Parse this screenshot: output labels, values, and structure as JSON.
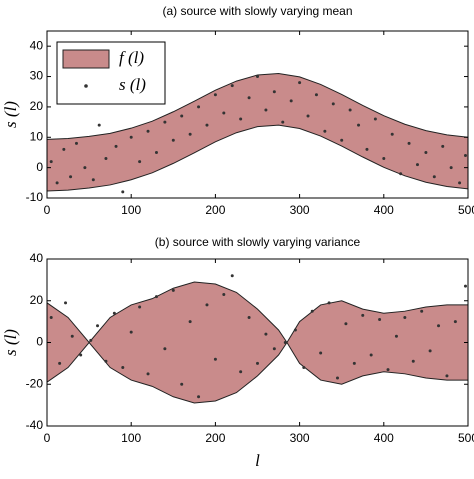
{
  "chart_data": [
    {
      "type": "band-scatter",
      "title": "(a) source with slowly varying mean",
      "ylabel": "s (l)",
      "xlim": [
        0,
        500
      ],
      "ylim": [
        -10,
        45
      ],
      "xticks": [
        0,
        100,
        200,
        300,
        400,
        500
      ],
      "yticks": [
        -10,
        0,
        10,
        20,
        30,
        40
      ],
      "legend": "upper left",
      "band": {
        "name": "f (l)",
        "color": "#c98b8b",
        "x": [
          0,
          25,
          50,
          75,
          100,
          125,
          150,
          175,
          200,
          225,
          250,
          275,
          300,
          325,
          350,
          375,
          400,
          425,
          450,
          475,
          500
        ],
        "lower": [
          -7.7,
          -7.4,
          -6.7,
          -5.7,
          -4,
          -1.7,
          1.4,
          4.9,
          8.5,
          11.5,
          13.5,
          14,
          12.9,
          10.4,
          7.1,
          3.5,
          0.1,
          -2.7,
          -4.8,
          -6.2,
          -7
        ],
        "upper": [
          9.3,
          9.6,
          10.3,
          11.3,
          13,
          15.3,
          18.4,
          21.9,
          25.5,
          28.5,
          30.5,
          31,
          29.9,
          27.4,
          24.1,
          20.5,
          17.1,
          14.3,
          12.2,
          10.8,
          10
        ]
      },
      "points": {
        "name": "s (l)",
        "color": "#333333",
        "x": [
          5,
          12,
          20,
          28,
          35,
          45,
          55,
          62,
          70,
          82,
          90,
          100,
          110,
          120,
          130,
          140,
          150,
          160,
          170,
          180,
          190,
          200,
          210,
          220,
          230,
          240,
          250,
          260,
          270,
          280,
          290,
          300,
          310,
          320,
          330,
          340,
          350,
          360,
          370,
          380,
          390,
          400,
          410,
          420,
          430,
          440,
          450,
          460,
          470,
          480,
          490,
          497
        ],
        "y": [
          2,
          -5,
          6,
          -3,
          8,
          0,
          -4,
          14,
          3,
          7,
          -8,
          10,
          2,
          12,
          5,
          15,
          9,
          17,
          11,
          20,
          14,
          24,
          18,
          27,
          16,
          23,
          30,
          19,
          25,
          15,
          22,
          28,
          17,
          24,
          12,
          21,
          9,
          19,
          14,
          6,
          16,
          3,
          11,
          -2,
          8,
          1,
          5,
          -3,
          7,
          0,
          -5,
          4
        ]
      }
    },
    {
      "type": "band-scatter",
      "title": "(b) source with slowly varying variance",
      "ylabel": "s (l)",
      "xlabel": "l",
      "xlim": [
        0,
        500
      ],
      "ylim": [
        -40,
        40
      ],
      "xticks": [
        0,
        100,
        200,
        300,
        400,
        500
      ],
      "yticks": [
        -40,
        -20,
        0,
        20,
        40
      ],
      "band": {
        "color": "#c98b8b",
        "x": [
          0,
          25,
          50,
          75,
          100,
          125,
          150,
          175,
          200,
          225,
          250,
          275,
          285,
          300,
          325,
          350,
          375,
          400,
          425,
          450,
          475,
          500
        ],
        "lower": [
          -19,
          -12,
          0,
          -12,
          -18,
          -21,
          -26,
          -29,
          -28,
          -24,
          -16,
          -6,
          0,
          -10,
          -18,
          -20,
          -16,
          -14,
          -15,
          -17,
          -18,
          -18
        ],
        "upper": [
          19,
          12,
          0,
          12,
          18,
          21,
          26,
          29,
          28,
          24,
          16,
          6,
          0,
          10,
          18,
          20,
          16,
          14,
          15,
          17,
          18,
          18
        ]
      },
      "points": {
        "color": "#333333",
        "x": [
          5,
          15,
          22,
          30,
          40,
          52,
          60,
          70,
          80,
          90,
          100,
          110,
          120,
          130,
          140,
          150,
          160,
          170,
          180,
          190,
          200,
          210,
          220,
          230,
          240,
          250,
          260,
          270,
          283,
          295,
          305,
          315,
          325,
          335,
          345,
          355,
          365,
          375,
          385,
          395,
          405,
          415,
          425,
          435,
          445,
          455,
          465,
          475,
          485,
          497
        ],
        "y": [
          12,
          -10,
          19,
          3,
          -6,
          1,
          8,
          -9,
          14,
          -12,
          5,
          17,
          -15,
          22,
          -3,
          25,
          -20,
          10,
          -26,
          18,
          -8,
          23,
          32,
          -14,
          12,
          -10,
          4,
          -3,
          0,
          6,
          -12,
          15,
          -5,
          19,
          -17,
          9,
          -10,
          13,
          -6,
          11,
          -13,
          3,
          12,
          -9,
          15,
          -4,
          8,
          -16,
          10,
          27
        ]
      }
    }
  ]
}
